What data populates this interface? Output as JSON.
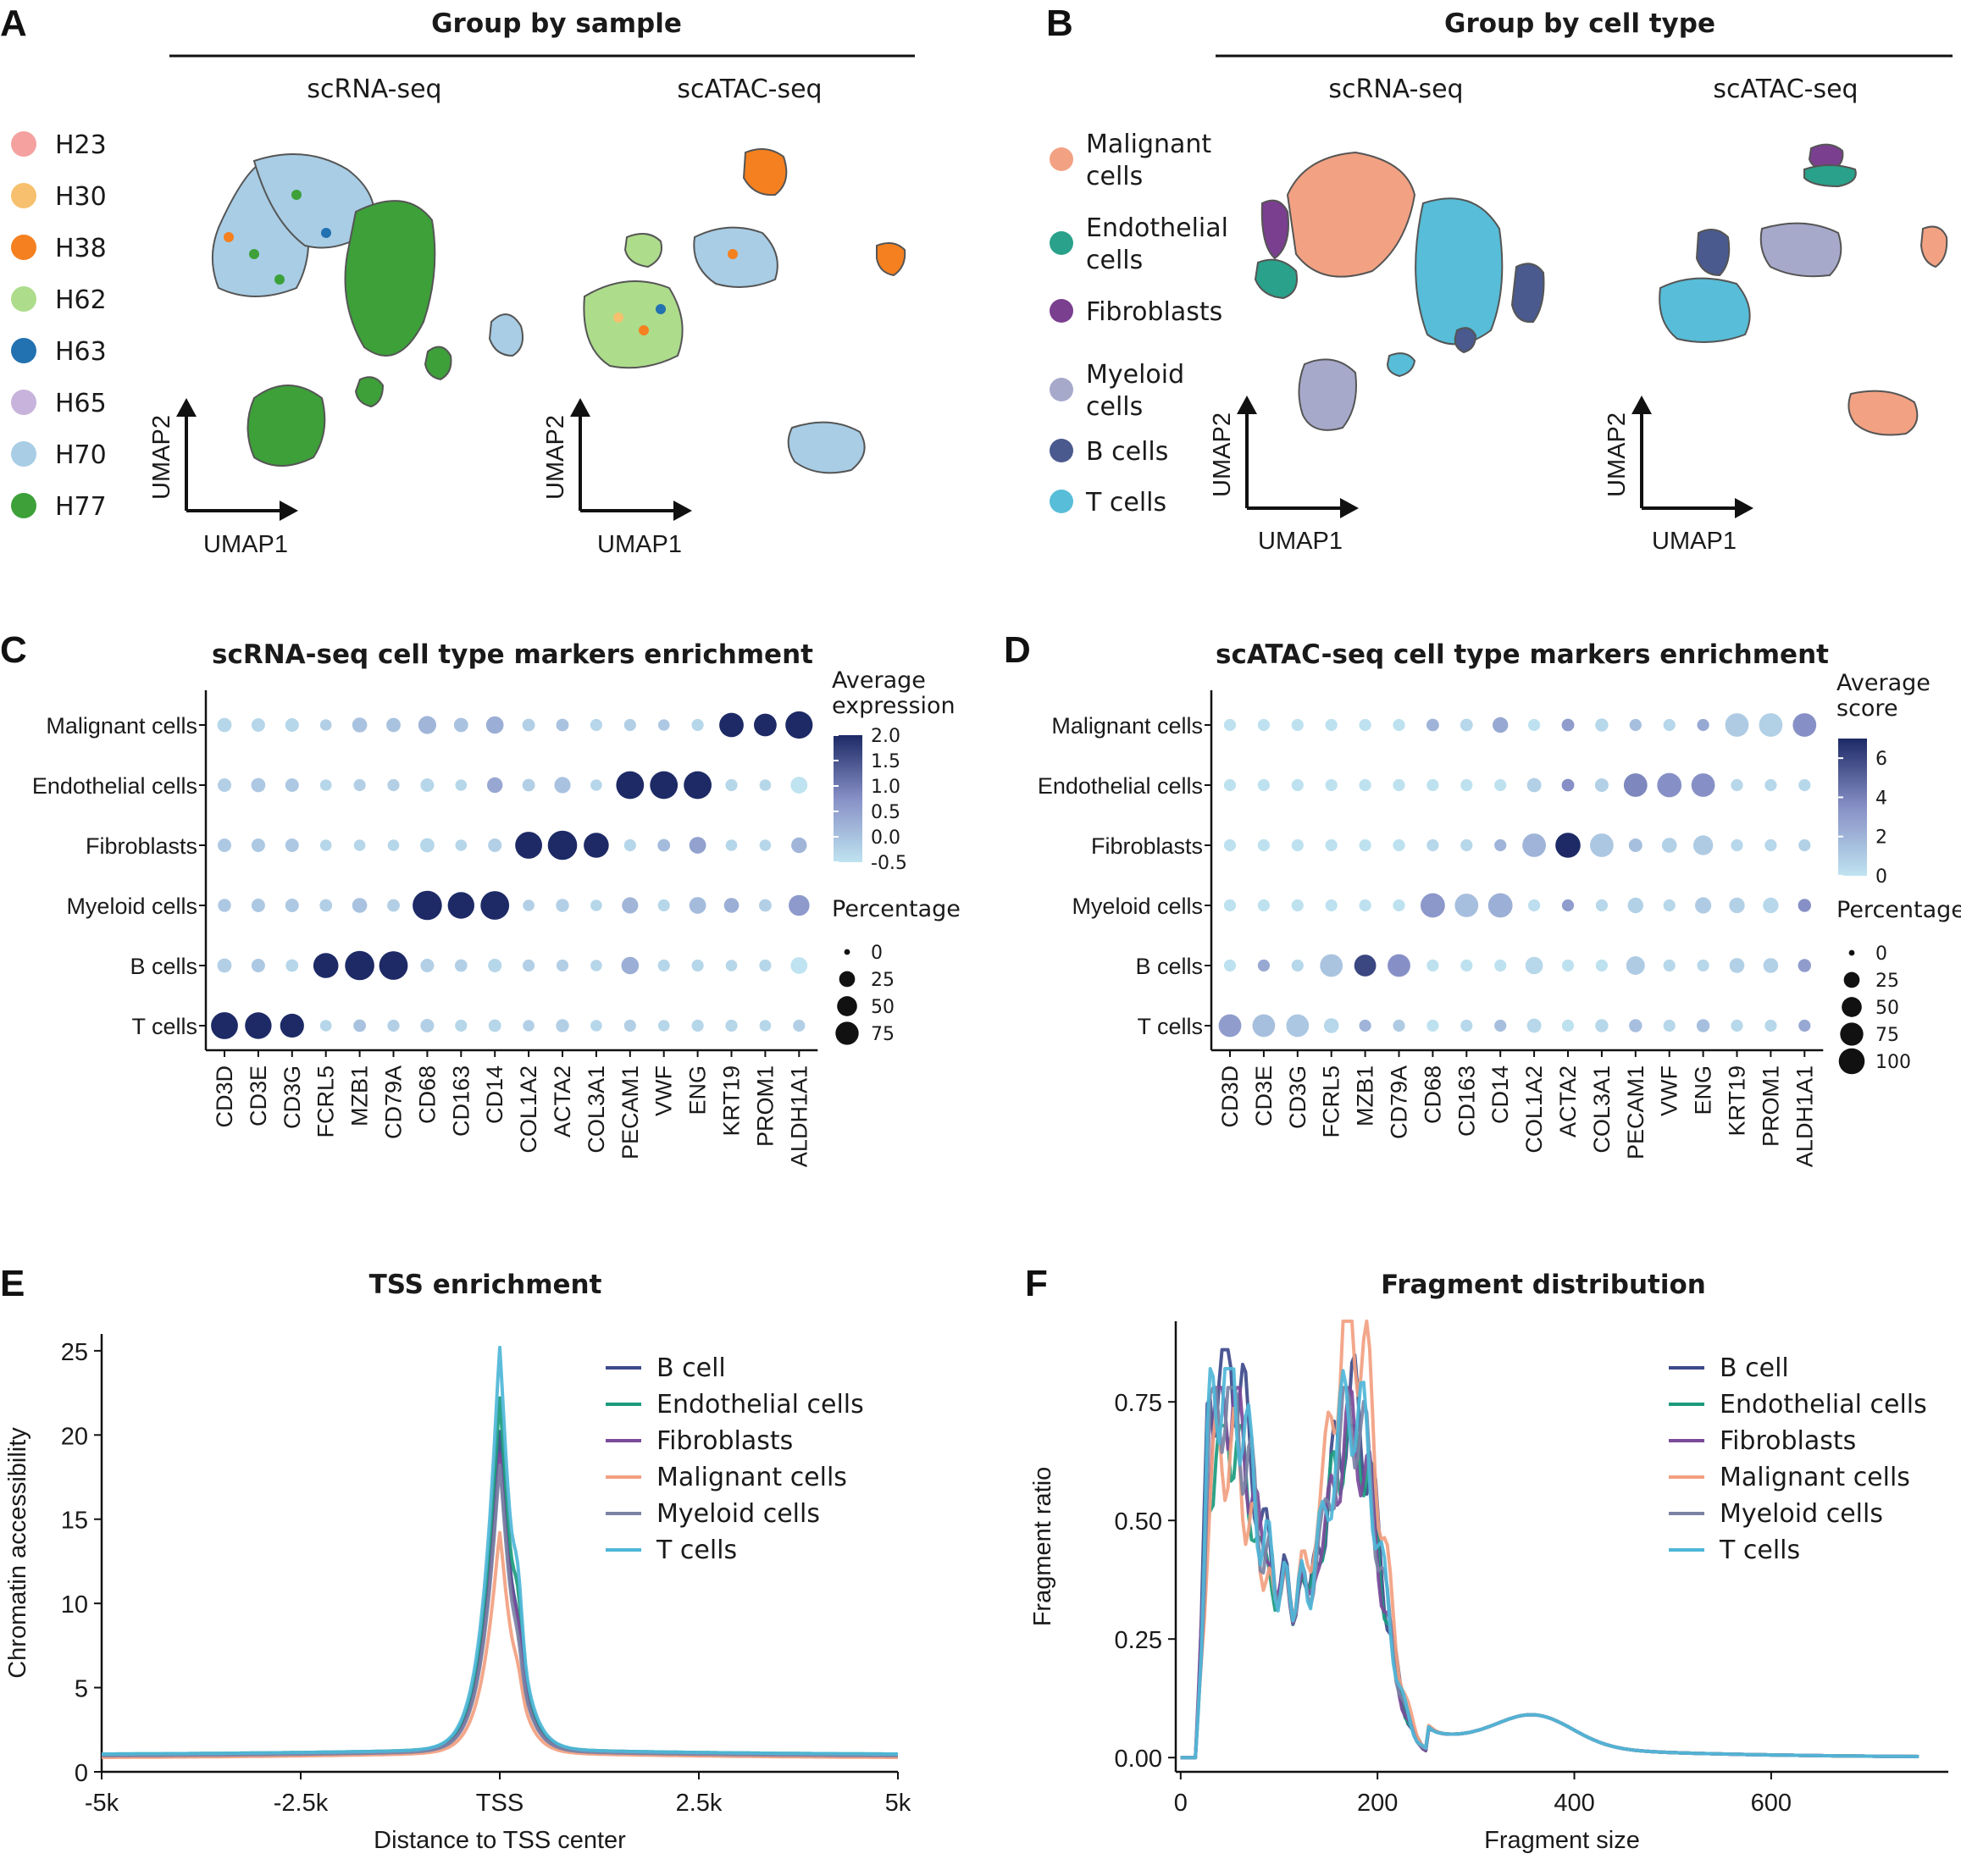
{
  "panelA": {
    "label": "A",
    "title": "Group by sample",
    "subtitles": [
      "scRNA-seq",
      "scATAC-seq"
    ],
    "legend": [
      {
        "name": "H23",
        "color": "#f4a1a0"
      },
      {
        "name": "H30",
        "color": "#f7c06e"
      },
      {
        "name": "H38",
        "color": "#f5801f"
      },
      {
        "name": "H62",
        "color": "#addc8b"
      },
      {
        "name": "H63",
        "color": "#2271b0"
      },
      {
        "name": "H65",
        "color": "#c7b3db"
      },
      {
        "name": "H70",
        "color": "#a8cde5"
      },
      {
        "name": "H77",
        "color": "#3da039"
      }
    ],
    "axes": {
      "x": "UMAP1",
      "y": "UMAP2"
    }
  },
  "panelB": {
    "label": "B",
    "title": "Group by cell type",
    "subtitles": [
      "scRNA-seq",
      "scATAC-seq"
    ],
    "legend": [
      {
        "name": "Malignant cells",
        "lines": [
          "Malignant",
          "cells"
        ],
        "color": "#f2a183"
      },
      {
        "name": "Endothelial cells",
        "lines": [
          "Endothelial",
          "cells"
        ],
        "color": "#2aa18a"
      },
      {
        "name": "Fibroblasts",
        "lines": [
          "Fibroblasts"
        ],
        "color": "#7a3f8f"
      },
      {
        "name": "Myeloid cells",
        "lines": [
          "Myeloid",
          "cells"
        ],
        "color": "#a7a9cb"
      },
      {
        "name": "B cells",
        "lines": [
          "B cells"
        ],
        "color": "#4a5a8f"
      },
      {
        "name": "T cells",
        "lines": [
          "T cells"
        ],
        "color": "#57bdd8"
      }
    ],
    "axes": {
      "x": "UMAP1",
      "y": "UMAP2"
    }
  },
  "chart_data": [
    {
      "panel": "C",
      "type": "dotplot",
      "title": "scRNA-seq cell type markers enrichment",
      "rows": [
        "Malignant cells",
        "Endothelial cells",
        "Fibroblasts",
        "Myeloid cells",
        "B cells",
        "T cells"
      ],
      "genes": [
        "CD3D",
        "CD3E",
        "CD3G",
        "FCRL5",
        "MZB1",
        "CD79A",
        "CD68",
        "CD163",
        "CD14",
        "COL1A2",
        "ACTA2",
        "COL3A1",
        "PECAM1",
        "VWF",
        "ENG",
        "KRT19",
        "PROM1",
        "ALDH1A1"
      ],
      "color_legend": {
        "title": [
          "Average",
          "expression"
        ],
        "ticks": [
          "2.0",
          "1.5",
          "1.0",
          "0.5",
          "0.0",
          "-0.5"
        ],
        "min": -0.5,
        "max": 2.0
      },
      "size_legend": {
        "title": "Percentage",
        "ticks": [
          "0",
          "25",
          "50",
          "75"
        ],
        "values": [
          0,
          25,
          50,
          75
        ]
      },
      "expression": [
        [
          -0.3,
          -0.3,
          -0.3,
          -0.2,
          0.0,
          0.0,
          0.2,
          0.0,
          0.3,
          -0.2,
          0.0,
          -0.3,
          -0.2,
          -0.1,
          -0.3,
          2.0,
          2.0,
          2.0
        ],
        [
          -0.2,
          -0.1,
          -0.1,
          -0.3,
          -0.2,
          -0.2,
          -0.3,
          -0.3,
          0.4,
          -0.2,
          0.0,
          -0.3,
          2.0,
          2.0,
          2.0,
          -0.3,
          -0.3,
          -0.5
        ],
        [
          -0.1,
          -0.1,
          -0.1,
          -0.3,
          -0.3,
          -0.3,
          -0.3,
          -0.3,
          -0.2,
          2.0,
          2.0,
          2.0,
          -0.3,
          0.1,
          0.5,
          -0.3,
          -0.3,
          0.2
        ],
        [
          -0.1,
          -0.1,
          -0.1,
          -0.2,
          0.0,
          -0.2,
          2.0,
          2.0,
          2.0,
          -0.2,
          -0.2,
          -0.3,
          0.2,
          -0.3,
          0.1,
          0.3,
          -0.2,
          0.6
        ],
        [
          -0.2,
          -0.1,
          -0.3,
          2.0,
          2.0,
          2.0,
          -0.2,
          -0.2,
          -0.3,
          -0.2,
          -0.2,
          -0.3,
          0.3,
          -0.3,
          -0.3,
          -0.3,
          -0.3,
          -0.5
        ],
        [
          2.0,
          2.0,
          2.0,
          -0.3,
          0.0,
          -0.2,
          -0.2,
          -0.3,
          -0.3,
          -0.2,
          -0.2,
          -0.3,
          -0.2,
          -0.3,
          -0.3,
          -0.3,
          -0.3,
          -0.2
        ]
      ],
      "percentage": [
        [
          10,
          8,
          8,
          4,
          12,
          10,
          22,
          10,
          20,
          6,
          6,
          5,
          5,
          4,
          5,
          55,
          45,
          75
        ],
        [
          8,
          10,
          8,
          4,
          5,
          5,
          8,
          4,
          14,
          6,
          16,
          4,
          78,
          78,
          78,
          5,
          4,
          18
        ],
        [
          8,
          8,
          8,
          4,
          4,
          4,
          10,
          4,
          8,
          72,
          90,
          60,
          5,
          6,
          18,
          4,
          4,
          14
        ],
        [
          7,
          8,
          8,
          6,
          12,
          6,
          90,
          70,
          85,
          4,
          7,
          4,
          16,
          5,
          18,
          12,
          6,
          35
        ],
        [
          10,
          8,
          6,
          60,
          90,
          85,
          8,
          6,
          8,
          5,
          5,
          4,
          20,
          5,
          5,
          4,
          5,
          18
        ],
        [
          72,
          70,
          52,
          4,
          6,
          5,
          8,
          5,
          6,
          4,
          7,
          4,
          5,
          4,
          5,
          5,
          4,
          5
        ]
      ]
    },
    {
      "panel": "D",
      "type": "dotplot",
      "title": "scATAC-seq cell type markers enrichment",
      "rows": [
        "Malignant cells",
        "Endothelial cells",
        "Fibroblasts",
        "Myeloid cells",
        "B cells",
        "T cells"
      ],
      "genes": [
        "CD3D",
        "CD3E",
        "CD3G",
        "FCRL5",
        "MZB1",
        "CD79A",
        "CD68",
        "CD163",
        "CD14",
        "COL1A2",
        "ACTA2",
        "COL3A1",
        "PECAM1",
        "VWF",
        "ENG",
        "KRT19",
        "PROM1",
        "ALDH1A1"
      ],
      "color_legend": {
        "title": [
          "Average",
          "score"
        ],
        "ticks": [
          "6",
          "4",
          "2",
          "0"
        ],
        "min": 0,
        "max": 7
      },
      "size_legend": {
        "title": "Percentage",
        "ticks": [
          "0",
          "25",
          "50",
          "75",
          "100"
        ],
        "values": [
          0,
          25,
          50,
          75,
          100
        ]
      },
      "score": [
        [
          0.1,
          0.1,
          0.1,
          0.1,
          0.1,
          0.1,
          2.0,
          0.5,
          2.5,
          0.1,
          3.0,
          0.5,
          1.5,
          0.5,
          2.5,
          1.0,
          0.8,
          3.5
        ],
        [
          0.1,
          0.1,
          0.1,
          0.1,
          0.1,
          0.1,
          0.1,
          0.1,
          0.1,
          0.8,
          3.5,
          0.8,
          3.8,
          3.5,
          3.5,
          0.5,
          0.5,
          0.5
        ],
        [
          0.1,
          0.1,
          0.1,
          0.1,
          0.1,
          0.1,
          0.5,
          0.5,
          2.0,
          2.0,
          7.0,
          1.2,
          1.5,
          0.8,
          1.0,
          0.5,
          0.5,
          0.8
        ],
        [
          0.1,
          0.1,
          0.1,
          0.1,
          0.1,
          0.1,
          3.2,
          1.5,
          2.2,
          0.2,
          3.0,
          0.5,
          0.8,
          0.5,
          1.0,
          0.8,
          0.5,
          3.5
        ],
        [
          0.1,
          2.5,
          0.5,
          1.3,
          6.0,
          3.5,
          0.1,
          0.1,
          0.1,
          0.5,
          0.1,
          0.1,
          1.0,
          0.5,
          0.5,
          0.8,
          0.8,
          3.0
        ],
        [
          3.0,
          1.5,
          1.2,
          0.5,
          2.0,
          1.0,
          0.1,
          0.5,
          1.5,
          0.5,
          0.1,
          0.5,
          1.5,
          0.5,
          1.5,
          0.5,
          0.5,
          2.5
        ]
      ],
      "percentage": [
        [
          5,
          5,
          5,
          5,
          5,
          5,
          6,
          6,
          14,
          5,
          6,
          7,
          5,
          5,
          5,
          50,
          50,
          50
        ],
        [
          5,
          5,
          5,
          5,
          5,
          5,
          5,
          5,
          5,
          10,
          6,
          8,
          50,
          55,
          50,
          5,
          5,
          5
        ],
        [
          5,
          5,
          5,
          5,
          5,
          5,
          5,
          5,
          5,
          50,
          60,
          50,
          8,
          12,
          30,
          5,
          5,
          5
        ],
        [
          5,
          5,
          5,
          5,
          5,
          5,
          55,
          50,
          55,
          5,
          5,
          5,
          14,
          5,
          16,
          14,
          14,
          7
        ],
        [
          5,
          5,
          5,
          45,
          40,
          45,
          5,
          5,
          5,
          20,
          5,
          5,
          25,
          5,
          5,
          12,
          12,
          7
        ],
        [
          45,
          45,
          45,
          12,
          5,
          5,
          5,
          5,
          5,
          10,
          5,
          7,
          7,
          5,
          7,
          5,
          5,
          5
        ]
      ]
    },
    {
      "panel": "E",
      "type": "line",
      "title": "TSS enrichment",
      "xlabel": "Distance to TSS center",
      "ylabel": "Chromatin accessibility",
      "xticks": [
        "-5k",
        "-2.5k",
        "TSS",
        "2.5k",
        "5k"
      ],
      "xtick_values": [
        -5000,
        -2500,
        0,
        2500,
        5000
      ],
      "yticks": [
        "0",
        "5",
        "10",
        "15",
        "20",
        "25"
      ],
      "xlim": [
        -5000,
        5000
      ],
      "ylim": [
        0,
        26
      ],
      "legend_position": "top-right",
      "series": [
        {
          "name": "B cell",
          "color": "#3d4a8a",
          "peak": 19.8,
          "bump": 5.5,
          "base": 0.9
        },
        {
          "name": "Endothelial cells",
          "color": "#1b9b7d",
          "peak": 21.8,
          "bump": 8.5,
          "base": 1.0
        },
        {
          "name": "Fibroblasts",
          "color": "#7b4a9a",
          "peak": 18.5,
          "bump": 6.5,
          "base": 0.9
        },
        {
          "name": "Malignant cells",
          "color": "#f2a080",
          "peak": 13.8,
          "bump": 3.5,
          "base": 0.8
        },
        {
          "name": "Myeloid cells",
          "color": "#7b82a4",
          "peak": 17.8,
          "bump": 4.5,
          "base": 0.9
        },
        {
          "name": "T cells",
          "color": "#4fb6d8",
          "peak": 24.8,
          "bump": 9.5,
          "base": 1.0
        }
      ]
    },
    {
      "panel": "F",
      "type": "line",
      "title": "Fragment distribution",
      "xlabel": "Fragment size",
      "ylabel": "Fragment ratio",
      "xticks": [
        "0",
        "200",
        "400",
        "600"
      ],
      "xtick_values": [
        0,
        200,
        400,
        600
      ],
      "yticks": [
        "0.00",
        "0.25",
        "0.50",
        "0.75"
      ],
      "ytick_values": [
        0,
        0.25,
        0.5,
        0.75
      ],
      "xlim": [
        -5,
        780
      ],
      "ylim": [
        -0.03,
        0.92
      ],
      "legend_position": "top-right",
      "series": [
        {
          "name": "B cell",
          "color": "#3d4a8a",
          "p1": 0.86,
          "p2": 0.73
        },
        {
          "name": "Endothelial cells",
          "color": "#1b9b7d",
          "p1": 0.7,
          "p2": 0.7
        },
        {
          "name": "Fibroblasts",
          "color": "#7b4a9a",
          "p1": 0.78,
          "p2": 0.68
        },
        {
          "name": "Malignant cells",
          "color": "#f2a080",
          "p1": 0.65,
          "p2": 0.92
        },
        {
          "name": "Myeloid cells",
          "color": "#7b82a4",
          "p1": 0.78,
          "p2": 0.72
        },
        {
          "name": "T cells",
          "color": "#4fb6d8",
          "p1": 0.82,
          "p2": 0.74
        }
      ]
    }
  ]
}
